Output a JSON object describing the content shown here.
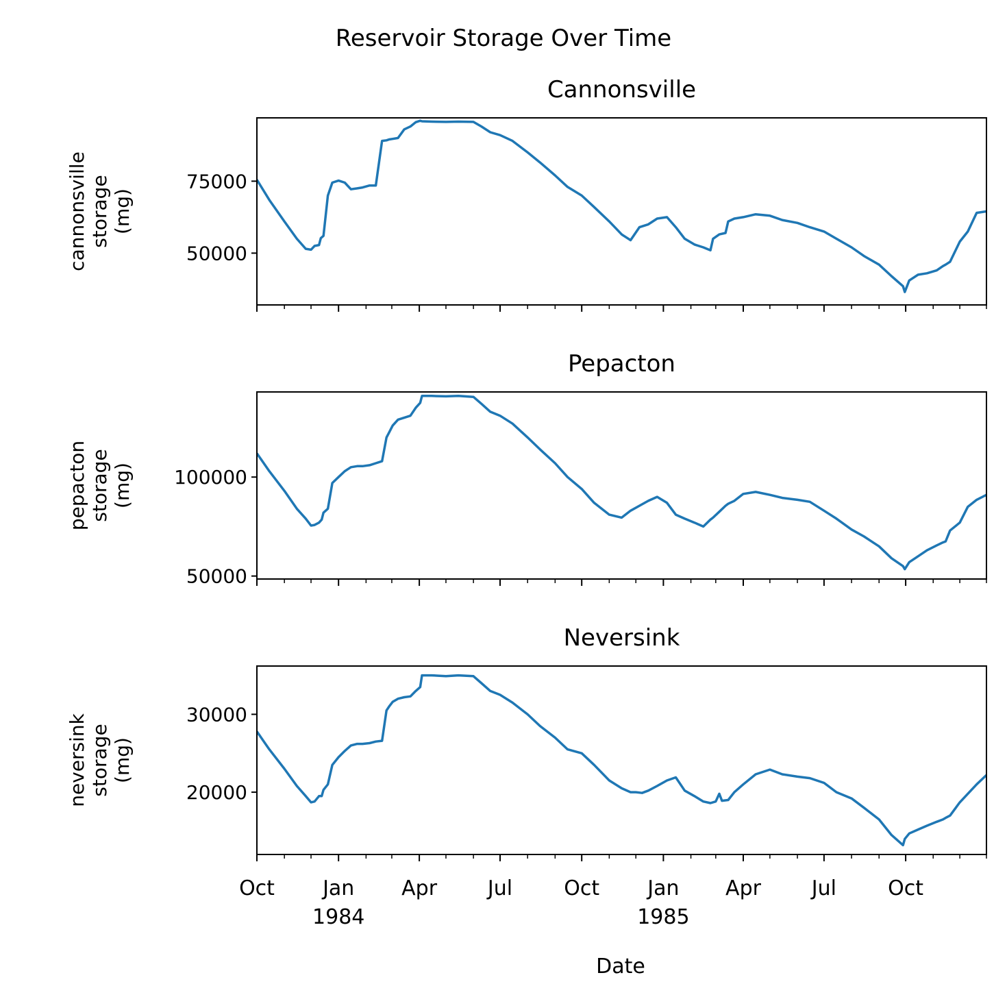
{
  "figure": {
    "title": "Reservoir Storage Over Time",
    "xlabel": "Date",
    "line_color": "#1f77b4",
    "x_ticks": [
      {
        "date": "1983-10-01",
        "label": "Oct",
        "year": ""
      },
      {
        "date": "1984-01-01",
        "label": "Jan",
        "year": "1984"
      },
      {
        "date": "1984-04-01",
        "label": "Apr",
        "year": ""
      },
      {
        "date": "1984-07-01",
        "label": "Jul",
        "year": ""
      },
      {
        "date": "1984-10-01",
        "label": "Oct",
        "year": ""
      },
      {
        "date": "1985-01-01",
        "label": "Jan",
        "year": "1985"
      },
      {
        "date": "1985-04-01",
        "label": "Apr",
        "year": ""
      },
      {
        "date": "1985-07-01",
        "label": "Jul",
        "year": ""
      },
      {
        "date": "1985-10-01",
        "label": "Oct",
        "year": ""
      }
    ],
    "minor_tick_dates": [
      "1983-11-01",
      "1983-12-01",
      "1984-02-01",
      "1984-03-01",
      "1984-05-01",
      "1984-06-01",
      "1984-08-01",
      "1984-09-01",
      "1984-11-01",
      "1984-12-01",
      "1985-02-01",
      "1985-03-01",
      "1985-05-01",
      "1985-06-01",
      "1985-08-01",
      "1985-09-01",
      "1985-11-01",
      "1985-12-01"
    ]
  },
  "chart_data": [
    {
      "type": "line",
      "title": "Cannonsville",
      "ylabel": [
        "cannonsville",
        "storage",
        "(mg)"
      ],
      "xlim": [
        "1983-10-01",
        "1985-12-31"
      ],
      "ylim": [
        32000,
        97000
      ],
      "yticks": [
        50000,
        75000
      ],
      "series": [
        {
          "x": [
            "1983-10-01",
            "1983-10-15",
            "1983-11-01",
            "1983-11-15",
            "1983-11-25",
            "1983-12-01",
            "1983-12-05",
            "1983-12-10",
            "1983-12-12",
            "1983-12-15",
            "1983-12-20",
            "1983-12-25",
            "1984-01-01",
            "1984-01-08",
            "1984-01-15",
            "1984-01-22",
            "1984-01-28",
            "1984-02-05",
            "1984-02-12",
            "1984-02-19",
            "1984-02-24",
            "1984-02-27",
            "1984-03-02",
            "1984-03-08",
            "1984-03-15",
            "1984-03-22",
            "1984-03-28",
            "1984-04-02",
            "1984-04-04",
            "1984-04-15",
            "1984-05-01",
            "1984-05-15",
            "1984-06-01",
            "1984-06-10",
            "1984-06-20",
            "1984-07-01",
            "1984-07-15",
            "1984-08-01",
            "1984-08-15",
            "1984-09-01",
            "1984-09-15",
            "1984-10-01",
            "1984-10-15",
            "1984-11-01",
            "1984-11-15",
            "1984-11-20",
            "1984-11-25",
            "1984-12-05",
            "1984-12-15",
            "1984-12-25",
            "1985-01-05",
            "1985-01-15",
            "1985-01-25",
            "1985-02-05",
            "1985-02-15",
            "1985-02-23",
            "1985-02-26",
            "1985-03-05",
            "1985-03-12",
            "1985-03-15",
            "1985-03-22",
            "1985-04-01",
            "1985-04-15",
            "1985-05-01",
            "1985-05-15",
            "1985-06-01",
            "1985-06-15",
            "1985-07-01",
            "1985-07-15",
            "1985-08-01",
            "1985-08-15",
            "1985-09-01",
            "1985-09-15",
            "1985-09-28",
            "1985-09-30",
            "1985-10-05",
            "1985-10-15",
            "1985-10-25",
            "1985-11-05",
            "1985-11-12",
            "1985-11-15",
            "1985-11-20",
            "1985-12-01",
            "1985-12-10",
            "1985-12-20",
            "1985-12-31"
          ],
          "y": [
            75500,
            68500,
            61000,
            55000,
            51500,
            51200,
            52500,
            52800,
            55200,
            56000,
            70000,
            74500,
            75200,
            74500,
            72200,
            72500,
            72800,
            73500,
            73500,
            89000,
            89200,
            89500,
            89700,
            90000,
            93000,
            94000,
            95500,
            96000,
            95800,
            95700,
            95600,
            95700,
            95600,
            94000,
            92000,
            91000,
            89000,
            85000,
            81500,
            77000,
            73000,
            70000,
            66000,
            61000,
            56500,
            55500,
            54500,
            59000,
            60000,
            62000,
            62500,
            59000,
            55000,
            53000,
            52000,
            51000,
            55000,
            56500,
            57000,
            61000,
            62000,
            62500,
            63500,
            63000,
            61500,
            60500,
            59000,
            57500,
            55000,
            52000,
            49000,
            46000,
            42000,
            38500,
            36500,
            40500,
            42500,
            43000,
            44000,
            45500,
            46000,
            47000,
            54000,
            57500,
            64000,
            64500
          ]
        }
      ]
    },
    {
      "type": "line",
      "title": "Pepacton",
      "ylabel": [
        "pepacton",
        "storage",
        "(mg)"
      ],
      "xlim": [
        "1983-10-01",
        "1985-12-31"
      ],
      "ylim": [
        48500,
        143000
      ],
      "yticks": [
        50000,
        100000
      ],
      "series": [
        {
          "x": [
            "1983-10-01",
            "1983-10-15",
            "1983-11-01",
            "1983-11-15",
            "1983-11-25",
            "1983-12-01",
            "1983-12-05",
            "1983-12-10",
            "1983-12-13",
            "1983-12-15",
            "1983-12-20",
            "1983-12-25",
            "1984-01-01",
            "1984-01-08",
            "1984-01-15",
            "1984-01-22",
            "1984-01-28",
            "1984-02-05",
            "1984-02-12",
            "1984-02-19",
            "1984-02-24",
            "1984-02-27",
            "1984-03-02",
            "1984-03-08",
            "1984-03-15",
            "1984-03-22",
            "1984-03-28",
            "1984-04-02",
            "1984-04-04",
            "1984-04-15",
            "1984-05-01",
            "1984-05-15",
            "1984-06-01",
            "1984-06-10",
            "1984-06-20",
            "1984-07-01",
            "1984-07-15",
            "1984-08-01",
            "1984-08-15",
            "1984-09-01",
            "1984-09-15",
            "1984-10-01",
            "1984-10-15",
            "1984-11-01",
            "1984-11-15",
            "1984-11-25",
            "1984-12-05",
            "1984-12-15",
            "1984-12-25",
            "1985-01-05",
            "1985-01-15",
            "1985-01-25",
            "1985-02-05",
            "1985-02-15",
            "1985-02-23",
            "1985-02-26",
            "1985-03-05",
            "1985-03-12",
            "1985-03-15",
            "1985-03-22",
            "1985-04-01",
            "1985-04-15",
            "1985-05-01",
            "1985-05-15",
            "1985-06-01",
            "1985-06-15",
            "1985-07-01",
            "1985-07-15",
            "1985-08-01",
            "1985-08-15",
            "1985-09-01",
            "1985-09-15",
            "1985-09-28",
            "1985-09-30",
            "1985-10-05",
            "1985-10-15",
            "1985-10-25",
            "1985-11-05",
            "1985-11-12",
            "1985-11-15",
            "1985-11-20",
            "1985-12-01",
            "1985-12-10",
            "1985-12-20",
            "1985-12-31"
          ],
          "y": [
            112000,
            103000,
            93000,
            84000,
            79000,
            75500,
            75800,
            77000,
            78500,
            82000,
            84000,
            97000,
            100000,
            103000,
            105000,
            105500,
            105500,
            106000,
            107000,
            108000,
            120000,
            122500,
            126000,
            129000,
            130000,
            131000,
            135000,
            137500,
            141000,
            141000,
            140800,
            141000,
            140500,
            137000,
            133000,
            131000,
            127000,
            120000,
            114000,
            107000,
            100000,
            94000,
            87000,
            81000,
            79500,
            83000,
            85500,
            88000,
            90000,
            87000,
            81000,
            79000,
            77000,
            75000,
            78500,
            79500,
            82500,
            85500,
            86500,
            88000,
            91500,
            92500,
            91000,
            89500,
            88500,
            87500,
            83000,
            79000,
            73500,
            70000,
            65000,
            59000,
            55000,
            53500,
            57000,
            60000,
            63000,
            65500,
            67000,
            67500,
            73000,
            77000,
            85000,
            88500,
            91000
          ]
        }
      ]
    },
    {
      "type": "line",
      "title": "Neversink",
      "ylabel": [
        "neversink",
        "storage",
        "(mg)"
      ],
      "xlim": [
        "1983-10-01",
        "1985-12-31"
      ],
      "ylim": [
        12000,
        36200
      ],
      "yticks": [
        20000,
        30000
      ],
      "series": [
        {
          "x": [
            "1983-10-01",
            "1983-10-15",
            "1983-11-01",
            "1983-11-15",
            "1983-11-25",
            "1983-12-01",
            "1983-12-05",
            "1983-12-10",
            "1983-12-13",
            "1983-12-15",
            "1983-12-20",
            "1983-12-25",
            "1984-01-01",
            "1984-01-08",
            "1984-01-15",
            "1984-01-22",
            "1984-01-28",
            "1984-02-05",
            "1984-02-12",
            "1984-02-19",
            "1984-02-24",
            "1984-02-27",
            "1984-03-02",
            "1984-03-08",
            "1984-03-15",
            "1984-03-22",
            "1984-03-28",
            "1984-04-02",
            "1984-04-04",
            "1984-04-15",
            "1984-05-01",
            "1984-05-15",
            "1984-06-01",
            "1984-06-10",
            "1984-06-20",
            "1984-07-01",
            "1984-07-15",
            "1984-08-01",
            "1984-08-15",
            "1984-09-01",
            "1984-09-15",
            "1984-10-01",
            "1984-10-15",
            "1984-11-01",
            "1984-11-15",
            "1984-11-25",
            "1984-12-01",
            "1984-12-08",
            "1984-12-15",
            "1984-12-25",
            "1985-01-05",
            "1985-01-15",
            "1985-01-25",
            "1985-02-05",
            "1985-02-15",
            "1985-02-23",
            "1985-03-01",
            "1985-03-05",
            "1985-03-08",
            "1985-03-15",
            "1985-03-22",
            "1985-04-01",
            "1985-04-15",
            "1985-05-01",
            "1985-05-15",
            "1985-06-01",
            "1985-06-15",
            "1985-07-01",
            "1985-07-15",
            "1985-08-01",
            "1985-08-15",
            "1985-09-01",
            "1985-09-15",
            "1985-09-28",
            "1985-09-30",
            "1985-10-05",
            "1985-10-15",
            "1985-10-25",
            "1985-11-05",
            "1985-11-12",
            "1985-11-15",
            "1985-11-20",
            "1985-12-01",
            "1985-12-10",
            "1985-12-20",
            "1985-12-31"
          ],
          "y": [
            27800,
            25500,
            23000,
            20800,
            19500,
            18700,
            18800,
            19500,
            19500,
            20300,
            21000,
            23500,
            24500,
            25300,
            26000,
            26200,
            26200,
            26300,
            26500,
            26600,
            30500,
            31000,
            31600,
            32000,
            32200,
            32300,
            33000,
            33500,
            35000,
            35000,
            34900,
            35000,
            34900,
            34000,
            33000,
            32500,
            31500,
            30000,
            28500,
            27000,
            25500,
            25000,
            23500,
            21500,
            20500,
            20000,
            20000,
            19900,
            20200,
            20800,
            21500,
            21900,
            20200,
            19500,
            18800,
            18600,
            18800,
            19800,
            18900,
            19000,
            20000,
            21000,
            22300,
            22900,
            22300,
            22000,
            21800,
            21200,
            20000,
            19200,
            18000,
            16500,
            14500,
            13200,
            14000,
            14700,
            15200,
            15700,
            16200,
            16500,
            16700,
            17000,
            18700,
            19800,
            21000,
            22200
          ]
        }
      ]
    }
  ]
}
